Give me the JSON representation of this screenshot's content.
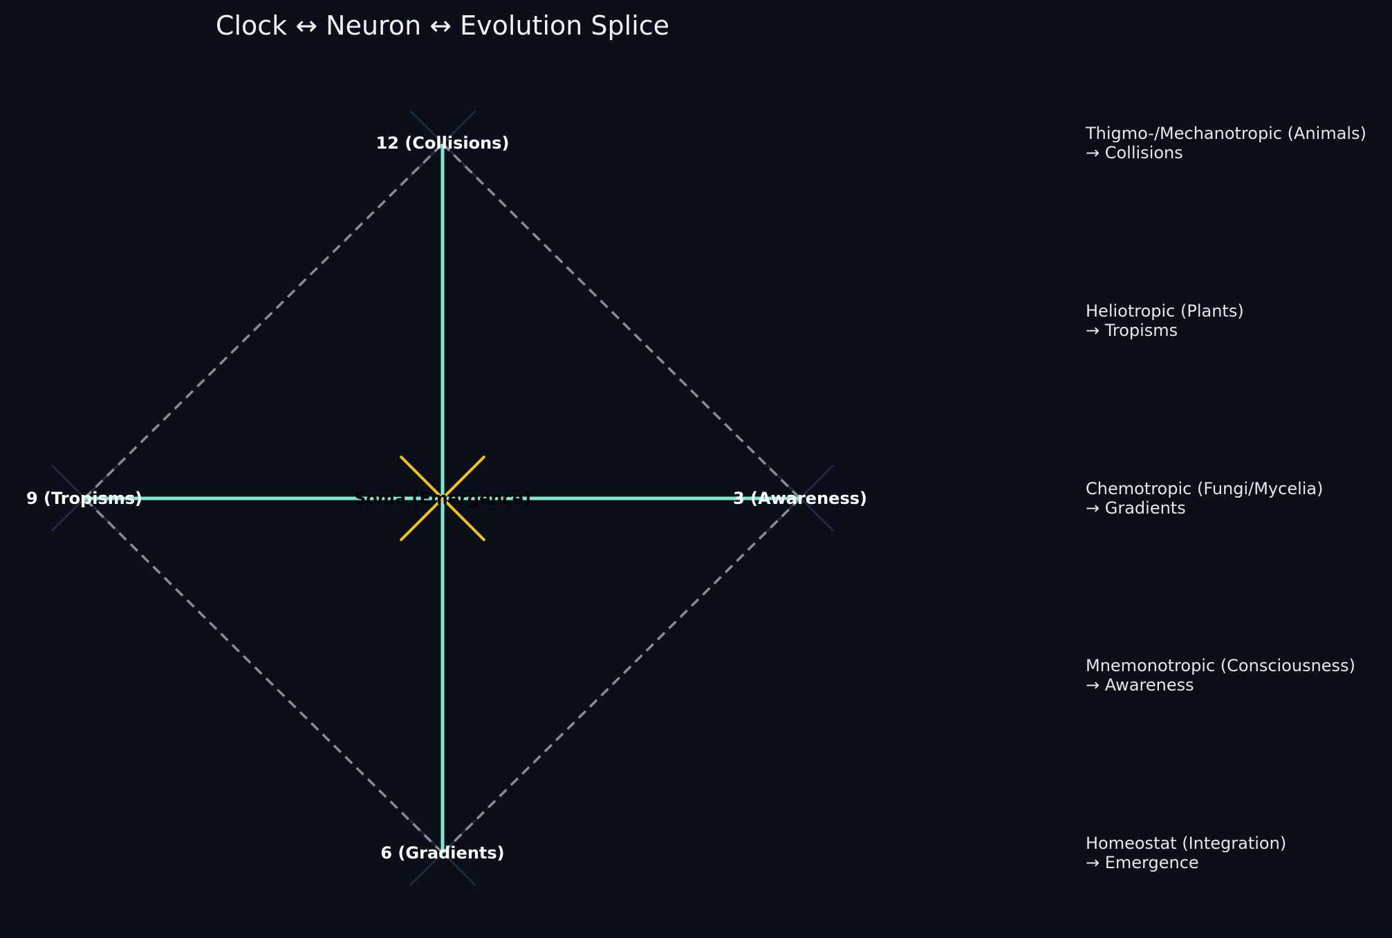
{
  "title": "Clock ↔ Neuron ↔ Evolution Splice",
  "colors": {
    "background": "#0a0f1a",
    "axis": "#7ee8d0",
    "diamond": "#888c94",
    "center_star": "#f2c21b",
    "node_marker": "#232a36",
    "label": "#ffffff"
  },
  "nodes": {
    "top": "12 (Collisions)",
    "right": "3 (Awareness)",
    "bottom": "6 (Gradients)",
    "left": "9 (Tropisms)",
    "center": "Soma (Emergence)"
  },
  "legend": [
    {
      "line1": "Thigmo-/Mechanotropic (Animals)",
      "line2": "→ Collisions"
    },
    {
      "line1": "Heliotropic (Plants)",
      "line2": "→ Tropisms"
    },
    {
      "line1": "Chemotropic (Fungi/Mycelia)",
      "line2": "→ Gradients"
    },
    {
      "line1": "Mnemonotropic (Consciousness)",
      "line2": "→ Awareness"
    },
    {
      "line1": "Homeostat (Integration)",
      "line2": "→ Emergence"
    }
  ]
}
